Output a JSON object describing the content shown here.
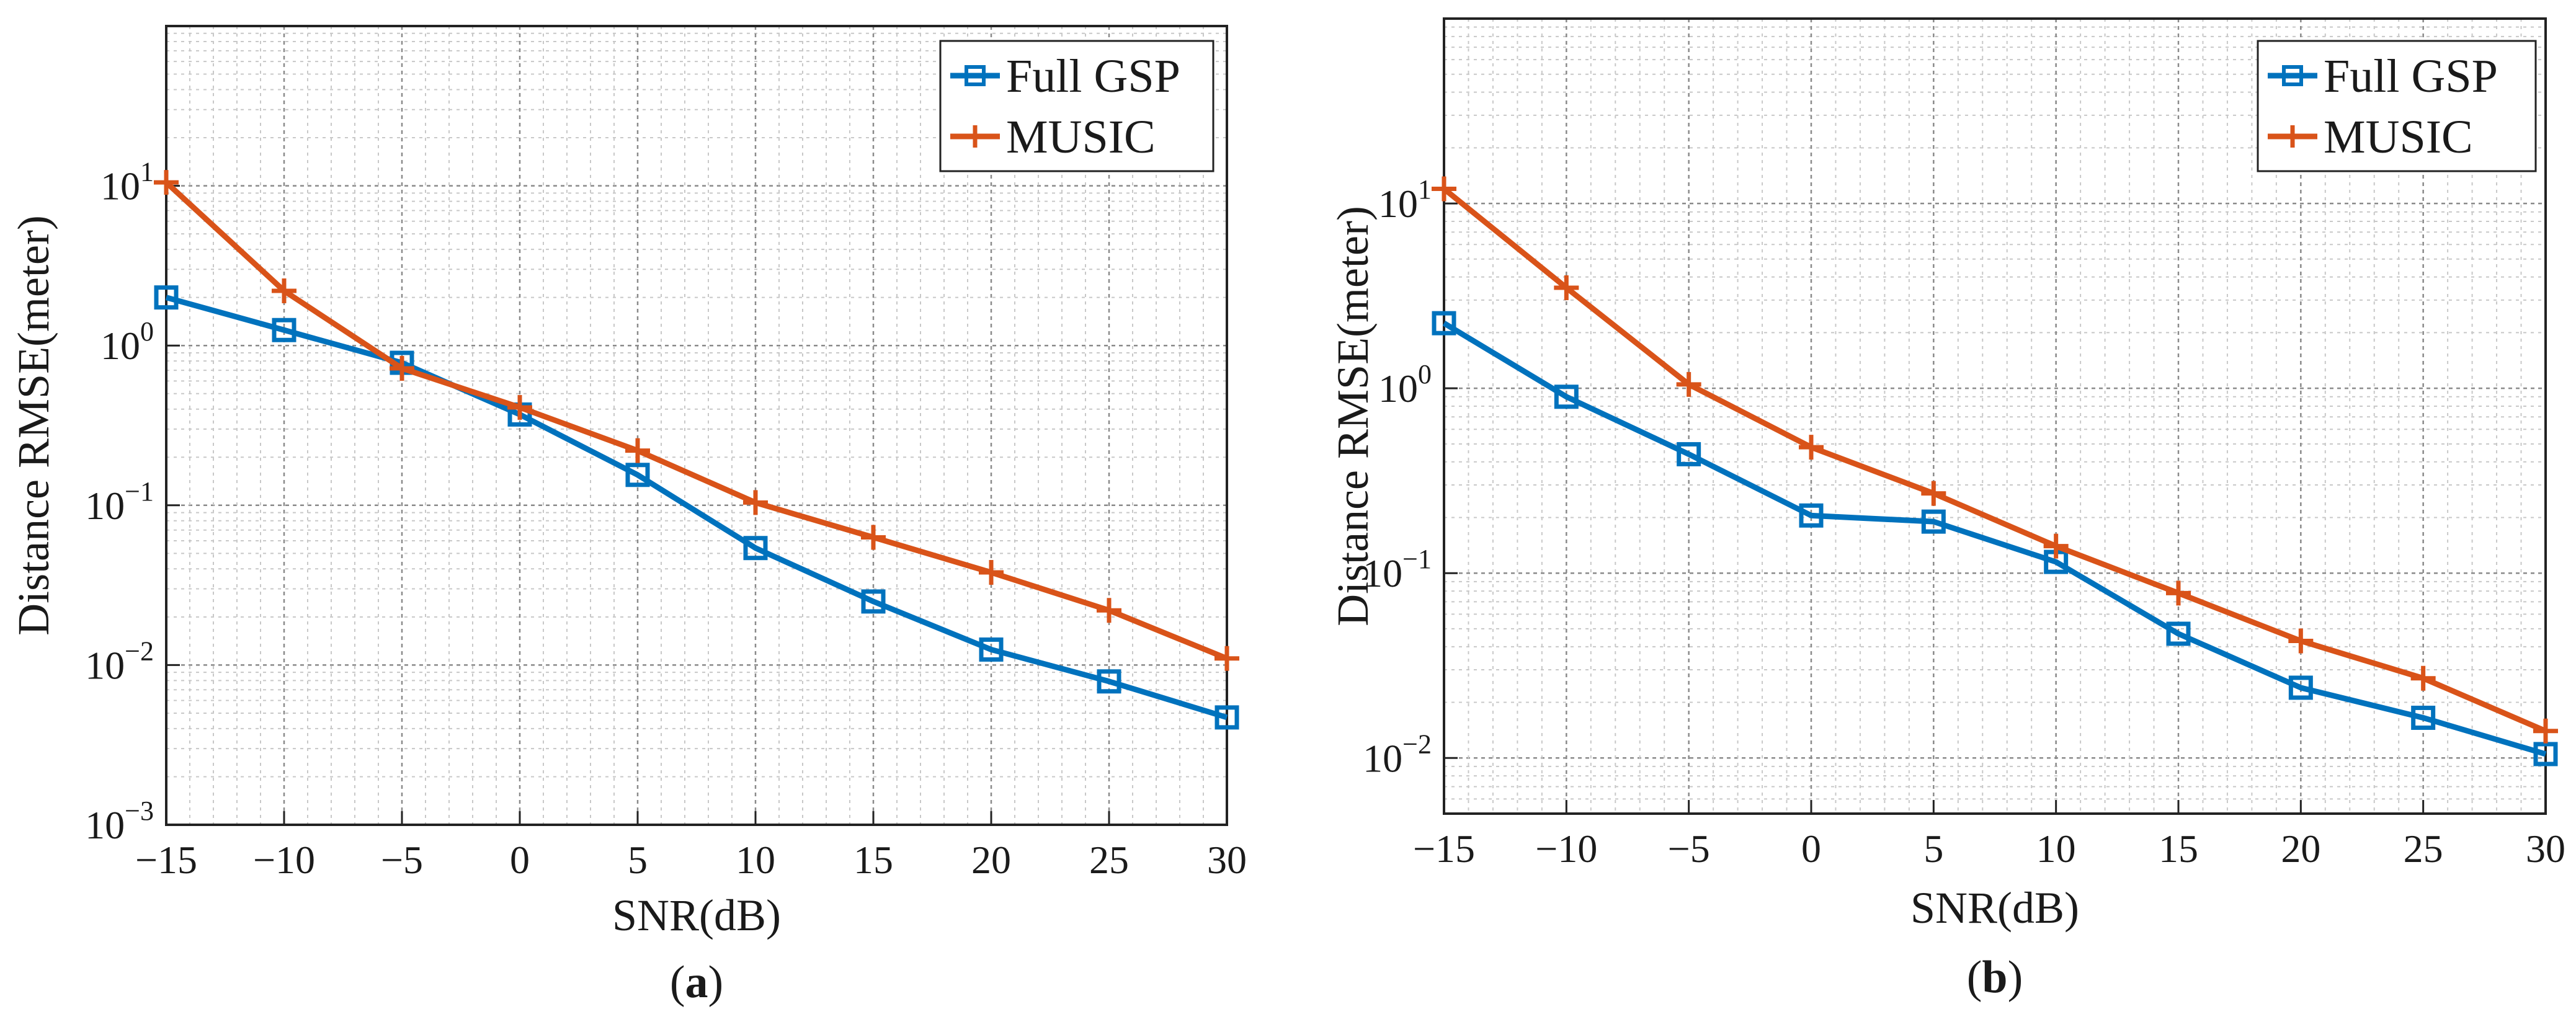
{
  "chart_data": [
    {
      "type": "line",
      "id": "a",
      "panel_label": "a",
      "xlabel": "SNR(dB)",
      "ylabel": "Distance RMSE(meter)",
      "yscale": "log",
      "x": [
        -15,
        -10,
        -5,
        0,
        5,
        10,
        15,
        20,
        25,
        30
      ],
      "xlim": [
        -15,
        30
      ],
      "ylim": [
        0.001,
        100
      ],
      "xticks": [
        "−15",
        "−10",
        "−5",
        "0",
        "5",
        "10",
        "15",
        "20",
        "25",
        "30"
      ],
      "yticks": [
        {
          "base": "10",
          "exp": "−3"
        },
        {
          "base": "10",
          "exp": "−2"
        },
        {
          "base": "10",
          "exp": "−1"
        },
        {
          "base": "10",
          "exp": "0"
        },
        {
          "base": "10",
          "exp": "1"
        }
      ],
      "grid": true,
      "legend_position": "top-right",
      "series": [
        {
          "name": "Full GSP",
          "color": "#0072BD",
          "marker": "square",
          "values": [
            2.0,
            1.25,
            0.78,
            0.37,
            0.155,
            0.054,
            0.025,
            0.0125,
            0.0079,
            0.0047
          ]
        },
        {
          "name": "MUSIC",
          "color": "#D95319",
          "marker": "plus",
          "values": [
            10.5,
            2.2,
            0.72,
            0.41,
            0.22,
            0.104,
            0.063,
            0.038,
            0.022,
            0.011
          ]
        }
      ]
    },
    {
      "type": "line",
      "id": "b",
      "panel_label": "b",
      "xlabel": "SNR(dB)",
      "ylabel": "Distance RMSE(meter)",
      "yscale": "log",
      "x": [
        -15,
        -10,
        -5,
        0,
        5,
        10,
        15,
        20,
        25,
        30
      ],
      "xlim": [
        -15,
        30
      ],
      "ylim": [
        0.005,
        100
      ],
      "xticks": [
        "−15",
        "−10",
        "−5",
        "0",
        "5",
        "10",
        "15",
        "20",
        "25",
        "30"
      ],
      "yticks": [
        {
          "base": "10",
          "exp": "−2"
        },
        {
          "base": "10",
          "exp": "−1"
        },
        {
          "base": "10",
          "exp": "0"
        },
        {
          "base": "10",
          "exp": "1"
        }
      ],
      "grid": true,
      "legend_position": "top-right",
      "series": [
        {
          "name": "Full GSP",
          "color": "#0072BD",
          "marker": "square",
          "values": [
            2.25,
            0.9,
            0.44,
            0.205,
            0.19,
            0.115,
            0.047,
            0.024,
            0.0165,
            0.0105
          ]
        },
        {
          "name": "MUSIC",
          "color": "#D95319",
          "marker": "plus",
          "values": [
            12.0,
            3.5,
            1.05,
            0.48,
            0.27,
            0.14,
            0.078,
            0.043,
            0.027,
            0.014
          ]
        }
      ]
    }
  ]
}
